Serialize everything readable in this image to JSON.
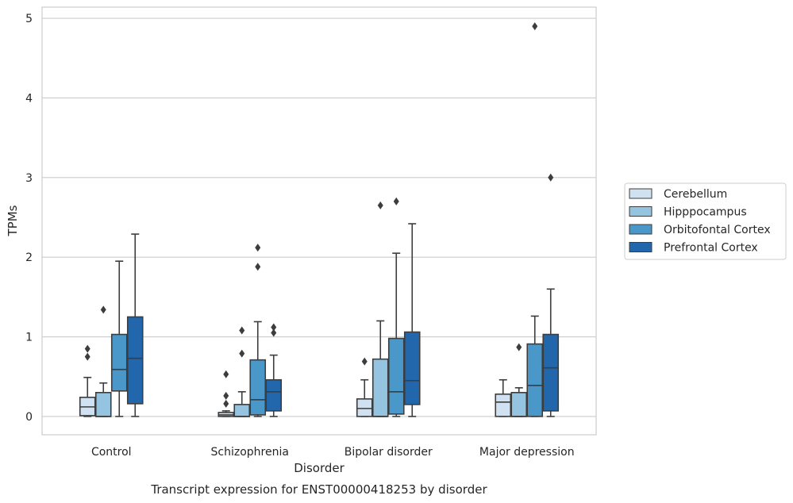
{
  "chart_data": {
    "type": "box",
    "title": "",
    "caption": "Transcript expression for ENST00000418253 by disorder",
    "xlabel": "Disorder",
    "ylabel": "TPMs",
    "ylim": [
      -0.23,
      5.14
    ],
    "yticks": [
      0,
      1,
      2,
      3,
      4,
      5
    ],
    "grid": "horizontal",
    "legend_position": "right",
    "categories": [
      "Control",
      "Schizophrenia",
      "Bipolar disorder",
      "Major depression"
    ],
    "series": [
      {
        "name": "Cerebellum",
        "color": "#d0e1f2",
        "boxes": [
          {
            "whisker_low": 0.0,
            "q1": 0.01,
            "median": 0.12,
            "q3": 0.24,
            "whisker_high": 0.49,
            "outliers": [
              0.75,
              0.85
            ]
          },
          {
            "whisker_low": 0.0,
            "q1": 0.0,
            "median": 0.02,
            "q3": 0.05,
            "whisker_high": 0.07,
            "outliers": [
              0.16,
              0.26,
              0.53
            ]
          },
          {
            "whisker_low": 0.0,
            "q1": 0.0,
            "median": 0.1,
            "q3": 0.22,
            "whisker_high": 0.46,
            "outliers": [
              0.69
            ]
          },
          {
            "whisker_low": 0.0,
            "q1": 0.0,
            "median": 0.18,
            "q3": 0.28,
            "whisker_high": 0.46,
            "outliers": []
          }
        ]
      },
      {
        "name": "Hipppocampus",
        "color": "#94c4df",
        "boxes": [
          {
            "whisker_low": 0.0,
            "q1": 0.0,
            "median": 0.0,
            "q3": 0.3,
            "whisker_high": 0.42,
            "outliers": [
              1.34
            ]
          },
          {
            "whisker_low": 0.0,
            "q1": 0.0,
            "median": 0.0,
            "q3": 0.15,
            "whisker_high": 0.31,
            "outliers": [
              0.79,
              1.08
            ]
          },
          {
            "whisker_low": 0.0,
            "q1": 0.0,
            "median": 0.0,
            "q3": 0.72,
            "whisker_high": 1.2,
            "outliers": [
              2.65
            ]
          },
          {
            "whisker_low": 0.0,
            "q1": 0.0,
            "median": 0.0,
            "q3": 0.3,
            "whisker_high": 0.36,
            "outliers": [
              0.87
            ]
          }
        ]
      },
      {
        "name": "Orbitofontal Cortex",
        "color": "#4a98c9",
        "boxes": [
          {
            "whisker_low": 0.0,
            "q1": 0.32,
            "median": 0.59,
            "q3": 1.03,
            "whisker_high": 1.95,
            "outliers": []
          },
          {
            "whisker_low": 0.0,
            "q1": 0.02,
            "median": 0.21,
            "q3": 0.71,
            "whisker_high": 1.19,
            "outliers": [
              1.88,
              2.12
            ]
          },
          {
            "whisker_low": 0.0,
            "q1": 0.03,
            "median": 0.31,
            "q3": 0.98,
            "whisker_high": 2.05,
            "outliers": [
              2.7
            ]
          },
          {
            "whisker_low": 0.0,
            "q1": 0.0,
            "median": 0.39,
            "q3": 0.91,
            "whisker_high": 1.26,
            "outliers": [
              4.9
            ]
          }
        ]
      },
      {
        "name": "Prefrontal Cortex",
        "color": "#2266ac",
        "boxes": [
          {
            "whisker_low": 0.0,
            "q1": 0.16,
            "median": 0.73,
            "q3": 1.25,
            "whisker_high": 2.29,
            "outliers": []
          },
          {
            "whisker_low": 0.0,
            "q1": 0.07,
            "median": 0.31,
            "q3": 0.46,
            "whisker_high": 0.77,
            "outliers": [
              1.05,
              1.12
            ]
          },
          {
            "whisker_low": 0.0,
            "q1": 0.15,
            "median": 0.45,
            "q3": 1.06,
            "whisker_high": 2.42,
            "outliers": []
          },
          {
            "whisker_low": 0.0,
            "q1": 0.07,
            "median": 0.61,
            "q3": 1.03,
            "whisker_high": 1.6,
            "outliers": [
              3.0
            ]
          }
        ]
      }
    ]
  }
}
